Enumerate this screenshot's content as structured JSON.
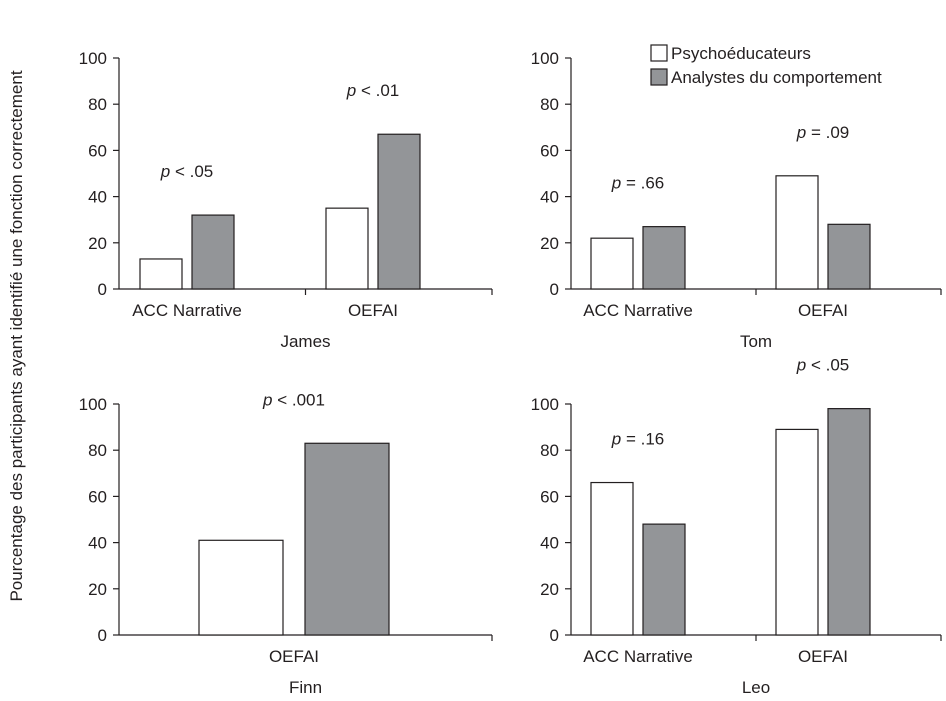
{
  "figure": {
    "ylabel": "Pourcentage des participants ayant identifié une fonction correctement",
    "legend": {
      "placement": "top-right",
      "entries": [
        {
          "label": "Psychoéducateurs",
          "color": "#ffffff"
        },
        {
          "label": "Analystes du comportement",
          "color": "#939598"
        }
      ]
    }
  },
  "chart_data": [
    {
      "type": "bar",
      "xlabel": "James",
      "ylim": [
        0,
        100
      ],
      "yticks": [
        "0",
        "20",
        "40",
        "60",
        "80",
        "100"
      ],
      "categories": [
        "ACC Narrative",
        "OEFAI"
      ],
      "series": [
        {
          "name": "Psychoéducateurs",
          "values": [
            13,
            35
          ]
        },
        {
          "name": "Analystes du comportement",
          "values": [
            32,
            67
          ]
        }
      ],
      "annotations": [
        {
          "p": "p",
          "rest": " < .05",
          "group": 0
        },
        {
          "p": "p",
          "rest": " < .01",
          "group": 1
        }
      ]
    },
    {
      "type": "bar",
      "xlabel": "Tom",
      "ylim": [
        0,
        100
      ],
      "yticks": [
        "0",
        "20",
        "40",
        "60",
        "80",
        "100"
      ],
      "categories": [
        "ACC Narrative",
        "OEFAI"
      ],
      "series": [
        {
          "name": "Psychoéducateurs",
          "values": [
            22,
            49
          ]
        },
        {
          "name": "Analystes du comportement",
          "values": [
            27,
            28
          ]
        }
      ],
      "annotations": [
        {
          "p": "p",
          "rest": " = .66",
          "group": 0
        },
        {
          "p": "p",
          "rest": " = .09",
          "group": 1
        }
      ]
    },
    {
      "type": "bar",
      "xlabel": "Finn",
      "ylim": [
        0,
        100
      ],
      "yticks": [
        "0",
        "20",
        "40",
        "60",
        "80",
        "100"
      ],
      "categories": [
        "OEFAI"
      ],
      "series": [
        {
          "name": "Psychoéducateurs",
          "values": [
            41
          ]
        },
        {
          "name": "Analystes du comportement",
          "values": [
            83
          ]
        }
      ],
      "annotations": [
        {
          "p": "p",
          "rest": " < .001",
          "group": 0
        }
      ]
    },
    {
      "type": "bar",
      "xlabel": "Leo",
      "ylim": [
        0,
        100
      ],
      "yticks": [
        "0",
        "20",
        "40",
        "60",
        "80",
        "100"
      ],
      "categories": [
        "ACC Narrative",
        "OEFAI"
      ],
      "series": [
        {
          "name": "Psychoéducateurs",
          "values": [
            66,
            89
          ]
        },
        {
          "name": "Analystes du comportement",
          "values": [
            48,
            98
          ]
        }
      ],
      "annotations": [
        {
          "p": "p",
          "rest": " = .16",
          "group": 0
        },
        {
          "p": "p",
          "rest": " < .05",
          "group": 1
        }
      ]
    }
  ]
}
